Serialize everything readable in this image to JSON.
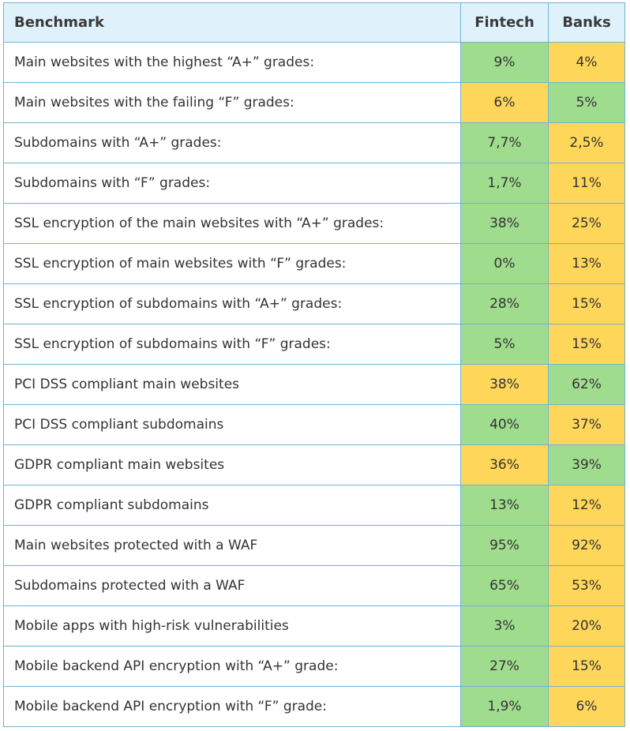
{
  "table": {
    "headers": [
      "Benchmark",
      "Fintech",
      "Banks"
    ],
    "colors": {
      "green": "#a0dc8e",
      "yellow": "#fed65a",
      "header": "#dff1fb",
      "border": "#6fb3d6"
    },
    "rows": [
      {
        "label": "Main websites with the highest “A+” grades:",
        "fintech": "9%",
        "banks": "4%",
        "fintech_color": "green",
        "banks_color": "yellow"
      },
      {
        "label": "Main websites with the failing “F” grades:",
        "fintech": "6%",
        "banks": "5%",
        "fintech_color": "yellow",
        "banks_color": "green"
      },
      {
        "label": "Subdomains with “A+” grades:",
        "fintech": "7,7%",
        "banks": "2,5%",
        "fintech_color": "green",
        "banks_color": "yellow"
      },
      {
        "label": "Subdomains with “F” grades:",
        "fintech": "1,7%",
        "banks": "11%",
        "fintech_color": "green",
        "banks_color": "yellow"
      },
      {
        "label": "SSL encryption of the main websites with “A+” grades:",
        "fintech": "38%",
        "banks": "25%",
        "fintech_color": "green",
        "banks_color": "yellow"
      },
      {
        "label": "SSL encryption of main websites with “F” grades:",
        "fintech": "0%",
        "banks": "13%",
        "fintech_color": "green",
        "banks_color": "yellow"
      },
      {
        "label": "SSL encryption of subdomains with “A+” grades:",
        "fintech": "28%",
        "banks": "15%",
        "fintech_color": "green",
        "banks_color": "yellow"
      },
      {
        "label": "SSL encryption of subdomains with “F” grades:",
        "fintech": "5%",
        "banks": "15%",
        "fintech_color": "green",
        "banks_color": "yellow"
      },
      {
        "label": "PCI DSS compliant main websites",
        "fintech": "38%",
        "banks": "62%",
        "fintech_color": "yellow",
        "banks_color": "green"
      },
      {
        "label": "PCI DSS compliant subdomains",
        "fintech": "40%",
        "banks": "37%",
        "fintech_color": "green",
        "banks_color": "yellow"
      },
      {
        "label": "GDPR compliant main websites",
        "fintech": "36%",
        "banks": "39%",
        "fintech_color": "yellow",
        "banks_color": "green"
      },
      {
        "label": "GDPR compliant subdomains",
        "fintech": "13%",
        "banks": "12%",
        "fintech_color": "green",
        "banks_color": "yellow"
      },
      {
        "label": "Main websites protected with a WAF",
        "fintech": "95%",
        "banks": "92%",
        "fintech_color": "green",
        "banks_color": "yellow"
      },
      {
        "label": "Subdomains protected with a WAF",
        "fintech": "65%",
        "banks": "53%",
        "fintech_color": "green",
        "banks_color": "yellow"
      },
      {
        "label": "Mobile apps with high-risk vulnerabilities",
        "fintech": "3%",
        "banks": "20%",
        "fintech_color": "green",
        "banks_color": "yellow"
      },
      {
        "label": "Mobile backend API encryption with “A+” grade:",
        "fintech": "27%",
        "banks": "15%",
        "fintech_color": "green",
        "banks_color": "yellow"
      },
      {
        "label": "Mobile backend API encryption with “F” grade:",
        "fintech": "1,9%",
        "banks": "6%",
        "fintech_color": "green",
        "banks_color": "yellow"
      }
    ]
  }
}
